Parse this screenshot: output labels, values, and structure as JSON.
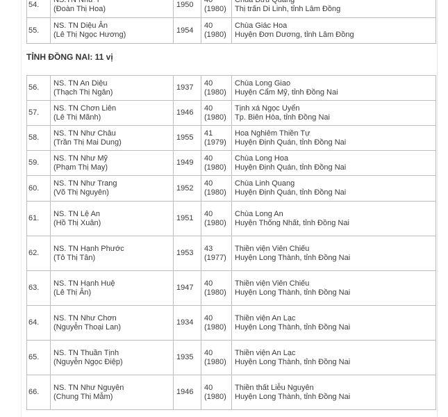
{
  "section_heading": "TỈNH ĐỒNG NAI: 11 vị",
  "table_lam_dong": [
    {
      "no": "54.",
      "name": "NS.TN Như Ý",
      "birth_name": "(Đoàn Thị Hoa)",
      "year": "1950",
      "age": "40",
      "age_year": "(1980)",
      "temple": "Chùa Bửu Quang",
      "location": "Thị trấn Di Linh, tỉnh Lâm Đồng"
    },
    {
      "no": "55.",
      "name": "NS. TN Diệu Ân",
      "birth_name": "(Lê Thị Ngọc Hương)",
      "year": "1954",
      "age": "40",
      "age_year": "(1980)",
      "temple": "Chùa Giác Hoa",
      "location": "Huyện Đơn Dương, tỉnh Lâm Đồng"
    }
  ],
  "table_dong_nai": [
    {
      "no": "56.",
      "name": "NS. TN An Diệu",
      "birth_name": "(Thạch Thị Ngân)",
      "year": "1937",
      "age": "40",
      "age_year": "(1980)",
      "temple": "Chùa Long Giao",
      "location": "Huyện Cẩm Mỹ, tỉnh Đồng Nai"
    },
    {
      "no": "57.",
      "name": "NS. TN Chơn Liên",
      "birth_name": "(Lê Thị Mãnh)",
      "year": "1946",
      "age": "40",
      "age_year": "(1980)",
      "temple": "Tịnh xá Ngọc Uyển",
      "location": "Tp. Biên Hòa, tỉnh Đồng Nai"
    },
    {
      "no": "58.",
      "name": "NS. TN Như Châu",
      "birth_name": "(Trần Thị Mai Dung)",
      "year": "1955",
      "age": "41",
      "age_year": "(1979)",
      "temple": "Hoa Nghiêm Thiền Tự",
      "location": "Huyện Định Quán, tỉnh Đồng Nai"
    },
    {
      "no": "59.",
      "name": "NS. TN Như Mỹ",
      "birth_name": "(Phạm Thị May)",
      "year": "1949",
      "age": "40",
      "age_year": "(1980)",
      "temple": "Chùa Long Hoa",
      "location": "Huyện Định Quán, tỉnh Đồng Nai"
    },
    {
      "no": "60.",
      "name": "NS. TN Như Trang",
      "birth_name": "(Võ Thị Nguyên)",
      "year": "1952",
      "age": "40",
      "age_year": "(1980)",
      "temple": "Chùa Linh Quang",
      "location": "Huyện Định Quán, tỉnh Đồng Nai"
    },
    {
      "no": "61.",
      "name": "NS. TN Lệ An",
      "birth_name": "(Hồ Thị Xuân)",
      "year": "1951",
      "age": "40",
      "age_year": "(1980)",
      "temple": "Chùa Long An",
      "location": "Huyện Thống Nhất, tỉnh Đồng Nai"
    },
    {
      "no": "62.",
      "name": "NS. TN Hạnh Phước",
      "birth_name": "(Tô Thị Tân)",
      "year": "1953",
      "age": "43",
      "age_year": "(1977)",
      "temple": "Thiền viện Viên Chiếu",
      "location": "Huyện Long Thành, tỉnh Đồng Nai"
    },
    {
      "no": "63.",
      "name": "NS. TN Hạnh Huệ",
      "birth_name": "(Lê Thị Ân)",
      "year": "1947",
      "age": "40",
      "age_year": "(1980)",
      "temple": "Thiền viện Viên Chiếu",
      "location": "Huyện Long Thành, tỉnh Đồng Nai"
    },
    {
      "no": "64.",
      "name": "NS. TN Như Chơn",
      "birth_name": "(Nguyễn Thoại Lan)",
      "year": "1934",
      "age": "40",
      "age_year": "(1980)",
      "temple": "Thiền viện An Lạc",
      "location": "Huyện Long Thành, tỉnh Đồng Nai"
    },
    {
      "no": "65.",
      "name": "NS. TN Thuần Tịnh",
      "birth_name": "(Nguyễn Ngọc Điệp)",
      "year": "1935",
      "age": "40",
      "age_year": "(1980)",
      "temple": "Thiền viện An Lạc",
      "location": "Huyện Long Thành, tỉnh Đồng Nai"
    },
    {
      "no": "66.",
      "name": "NS. TN Như Nguyên",
      "birth_name": "(Chung Thị Mẫm)",
      "year": "1946",
      "age": "40",
      "age_year": "(1980)",
      "temple": "Thiền thất Liễu Nguyên",
      "location": "Huyện Long Thành, tỉnh Đồng Nai"
    }
  ]
}
